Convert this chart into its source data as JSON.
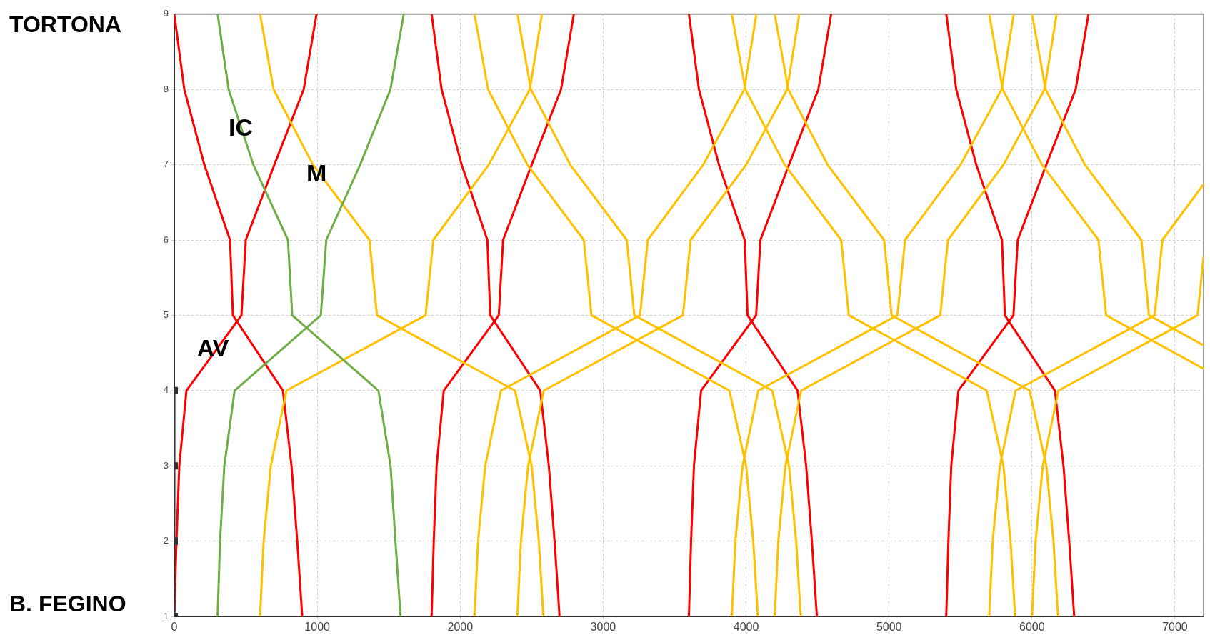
{
  "chart_data": {
    "type": "line",
    "xlim": [
      0,
      7200
    ],
    "xticks": [
      0,
      1000,
      2000,
      3000,
      4000,
      5000,
      6000,
      7000
    ],
    "ylim": [
      1,
      9
    ],
    "yticks": [
      1,
      2,
      3,
      4,
      5,
      6,
      7,
      8,
      9
    ],
    "grid": true,
    "legend": false,
    "marker": "none",
    "line_style": "solid",
    "annotations": [
      "TORTONA",
      "B. FEGINO",
      {
        "text": "IC",
        "x": 465,
        "y": 7.47
      },
      {
        "text": "M",
        "x": 995,
        "y": 6.87
      },
      {
        "text": "AV",
        "x": 270,
        "y": 4.54
      }
    ],
    "series": [
      {
        "color": "#333333",
        "marker": "square",
        "x": [
          0,
          0,
          0,
          0
        ],
        "values": [
          1,
          2,
          3,
          4
        ]
      },
      {
        "color": "#70ad47",
        "x": [
          303,
          380,
          553,
          795,
          825,
          1428,
          1513,
          1547,
          1583
        ],
        "values": [
          9,
          8,
          7,
          6,
          5,
          4,
          3,
          2,
          1
        ]
      },
      {
        "color": "#70ad47",
        "x": [
          303,
          320,
          350,
          422,
          1025,
          1063,
          1300,
          1512,
          1605
        ],
        "values": [
          1,
          2,
          3,
          4,
          5,
          6,
          7,
          8,
          9
        ]
      },
      {
        "color": "#ffc000",
        "x": [
          600,
          695,
          970,
          1365,
          1418,
          2383,
          2500,
          2550,
          2582
        ],
        "values": [
          9,
          8,
          7,
          6,
          5,
          4,
          3,
          2,
          1
        ]
      },
      {
        "color": "#ffc000",
        "x": [
          2100,
          2195,
          2470,
          2865,
          2918,
          3883,
          4000,
          4050,
          4082
        ],
        "values": [
          9,
          8,
          7,
          6,
          5,
          4,
          3,
          2,
          1
        ]
      },
      {
        "color": "#ffc000",
        "x": [
          2400,
          2495,
          2770,
          3165,
          3218,
          4183,
          4300,
          4350,
          4382
        ],
        "values": [
          9,
          8,
          7,
          6,
          5,
          4,
          3,
          2,
          1
        ]
      },
      {
        "color": "#ffc000",
        "x": [
          3900,
          3995,
          4270,
          4665,
          4718,
          5683,
          5800,
          5850,
          5882
        ],
        "values": [
          9,
          8,
          7,
          6,
          5,
          4,
          3,
          2,
          1
        ]
      },
      {
        "color": "#ffc000",
        "x": [
          4200,
          4295,
          4570,
          4965,
          5018,
          5983,
          6100,
          6150,
          6182
        ],
        "values": [
          9,
          8,
          7,
          6,
          5,
          4,
          3,
          2,
          1
        ]
      },
      {
        "color": "#ffc000",
        "x": [
          5700,
          5795,
          6070,
          6465,
          6518,
          7200
        ],
        "values": [
          9,
          8,
          7,
          6,
          5,
          4.29
        ]
      },
      {
        "color": "#ffc000",
        "x": [
          6000,
          6095,
          6370,
          6765,
          6818,
          7200
        ],
        "values": [
          9,
          8,
          7,
          6,
          5,
          4.6
        ]
      },
      {
        "color": "#ffc000",
        "x": [
          600,
          625,
          675,
          785,
          1758,
          1812,
          2200,
          2487,
          2572
        ],
        "values": [
          1,
          2,
          3,
          4,
          5,
          6,
          7,
          8,
          9
        ]
      },
      {
        "color": "#ffc000",
        "x": [
          2100,
          2125,
          2175,
          2285,
          3258,
          3312,
          3700,
          3987,
          4072
        ],
        "values": [
          1,
          2,
          3,
          4,
          5,
          6,
          7,
          8,
          9
        ]
      },
      {
        "color": "#ffc000",
        "x": [
          2400,
          2425,
          2475,
          2585,
          3558,
          3612,
          4000,
          4287,
          4372
        ],
        "values": [
          1,
          2,
          3,
          4,
          5,
          6,
          7,
          8,
          9
        ]
      },
      {
        "color": "#ffc000",
        "x": [
          3900,
          3925,
          3975,
          4085,
          5058,
          5112,
          5500,
          5787,
          5872
        ],
        "values": [
          1,
          2,
          3,
          4,
          5,
          6,
          7,
          8,
          9
        ]
      },
      {
        "color": "#ffc000",
        "x": [
          4200,
          4225,
          4275,
          4385,
          5358,
          5412,
          5800,
          6087,
          6172
        ],
        "values": [
          1,
          2,
          3,
          4,
          5,
          6,
          7,
          8,
          9
        ]
      },
      {
        "color": "#ffc000",
        "x": [
          5700,
          5725,
          5775,
          5885,
          6858,
          6912,
          7200
        ],
        "values": [
          1,
          2,
          3,
          4,
          5,
          6,
          6.74
        ]
      },
      {
        "color": "#ffc000",
        "x": [
          6000,
          6025,
          6075,
          6185,
          7158,
          7200
        ],
        "values": [
          1,
          2,
          3,
          4,
          5,
          5.78
        ]
      },
      {
        "color": "#ff0000",
        "x": [
          0,
          70,
          210,
          390,
          410,
          760,
          820,
          860,
          895
        ],
        "values": [
          9,
          8,
          7,
          6,
          5,
          4,
          3,
          2,
          1
        ]
      },
      {
        "color": "#ff0000",
        "x": [
          1800,
          1870,
          2010,
          2190,
          2210,
          2560,
          2620,
          2660,
          2695
        ],
        "values": [
          9,
          8,
          7,
          6,
          5,
          4,
          3,
          2,
          1
        ]
      },
      {
        "color": "#ff0000",
        "x": [
          3600,
          3670,
          3810,
          3990,
          4010,
          4360,
          4420,
          4460,
          4495
        ],
        "values": [
          9,
          8,
          7,
          6,
          5,
          4,
          3,
          2,
          1
        ]
      },
      {
        "color": "#ff0000",
        "x": [
          5400,
          5470,
          5610,
          5790,
          5810,
          6160,
          6220,
          6260,
          6295
        ],
        "values": [
          9,
          8,
          7,
          6,
          5,
          4,
          3,
          2,
          1
        ]
      },
      {
        "color": "#ff0000",
        "x": [
          0,
          15,
          35,
          85,
          470,
          500,
          700,
          905,
          995
        ],
        "values": [
          1,
          2,
          3,
          4,
          5,
          6,
          7,
          8,
          9
        ]
      },
      {
        "color": "#ff0000",
        "x": [
          1800,
          1815,
          1835,
          1885,
          2270,
          2300,
          2500,
          2705,
          2795
        ],
        "values": [
          1,
          2,
          3,
          4,
          5,
          6,
          7,
          8,
          9
        ]
      },
      {
        "color": "#ff0000",
        "x": [
          3600,
          3615,
          3635,
          3685,
          4070,
          4100,
          4300,
          4505,
          4595
        ],
        "values": [
          1,
          2,
          3,
          4,
          5,
          6,
          7,
          8,
          9
        ]
      },
      {
        "color": "#ff0000",
        "x": [
          5400,
          5415,
          5435,
          5485,
          5870,
          5900,
          6100,
          6305,
          6395
        ],
        "values": [
          1,
          2,
          3,
          4,
          5,
          6,
          7,
          8,
          9
        ]
      }
    ]
  }
}
